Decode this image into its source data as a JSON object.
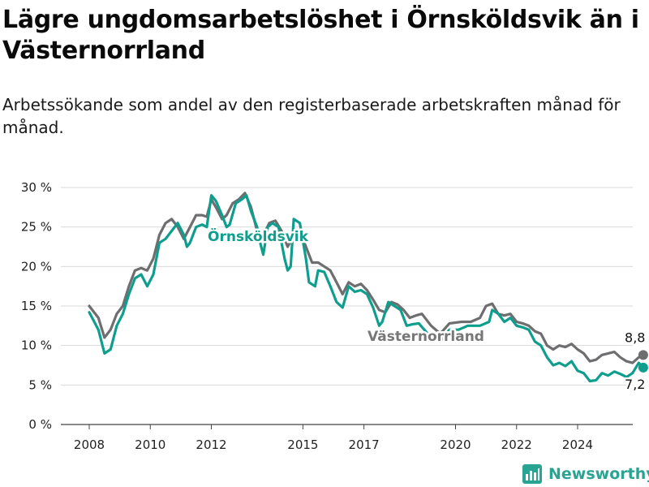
{
  "title": "Lägre ungdomsarbetslöshet i Örnsköldsvik än i Västernorrland",
  "subtitle": "Arbetssökande som andel av den registerbaserade arbetskraften månad för månad.",
  "brand": "Newsworthy",
  "colors": {
    "ornskoldsvik": "#0f9e8e",
    "vasternorrland": "#6e6e70",
    "grid": "#d9d9d9"
  },
  "chart_data": {
    "type": "line",
    "title": "Lägre ungdomsarbetslöshet i Örnsköldsvik än i Västernorrland",
    "x_ticks": [
      "2008",
      "2010",
      "2012",
      "2015",
      "2017",
      "2020",
      "2022",
      "2024"
    ],
    "y_ticks": [
      "0 %",
      "5 %",
      "10 %",
      "15 %",
      "20 %",
      "25 %",
      "30 %"
    ],
    "ylim": [
      0,
      30
    ],
    "grid": true,
    "series": [
      {
        "name": "Örnsköldsvik",
        "end_label": "7,2 %",
        "points": [
          [
            2008.0,
            14.2
          ],
          [
            2008.3,
            12.0
          ],
          [
            2008.5,
            9.0
          ],
          [
            2008.7,
            9.5
          ],
          [
            2008.9,
            12.5
          ],
          [
            2009.1,
            14.0
          ],
          [
            2009.3,
            16.5
          ],
          [
            2009.5,
            18.5
          ],
          [
            2009.7,
            19.0
          ],
          [
            2009.9,
            17.5
          ],
          [
            2010.1,
            19.0
          ],
          [
            2010.3,
            23.0
          ],
          [
            2010.5,
            23.5
          ],
          [
            2010.7,
            24.5
          ],
          [
            2010.9,
            25.5
          ],
          [
            2011.1,
            24.0
          ],
          [
            2011.2,
            22.5
          ],
          [
            2011.3,
            23.0
          ],
          [
            2011.5,
            25.0
          ],
          [
            2011.7,
            25.3
          ],
          [
            2011.85,
            25.0
          ],
          [
            2012.0,
            29.0
          ],
          [
            2012.15,
            28.3
          ],
          [
            2012.35,
            26.5
          ],
          [
            2012.5,
            25.0
          ],
          [
            2012.6,
            25.3
          ],
          [
            2012.8,
            28.0
          ],
          [
            2013.0,
            28.5
          ],
          [
            2013.15,
            29.0
          ],
          [
            2013.3,
            27.0
          ],
          [
            2013.5,
            25.0
          ],
          [
            2013.6,
            23.0
          ],
          [
            2013.7,
            21.5
          ],
          [
            2013.85,
            25.0
          ],
          [
            2014.0,
            25.5
          ],
          [
            2014.2,
            25.0
          ],
          [
            2014.4,
            21.0
          ],
          [
            2014.5,
            19.5
          ],
          [
            2014.6,
            20.0
          ],
          [
            2014.7,
            26.0
          ],
          [
            2014.9,
            25.5
          ],
          [
            2015.1,
            21.0
          ],
          [
            2015.2,
            18.0
          ],
          [
            2015.4,
            17.5
          ],
          [
            2015.5,
            19.5
          ],
          [
            2015.7,
            19.3
          ],
          [
            2015.9,
            17.5
          ],
          [
            2016.1,
            15.5
          ],
          [
            2016.3,
            14.8
          ],
          [
            2016.5,
            17.5
          ],
          [
            2016.7,
            16.8
          ],
          [
            2016.9,
            17.0
          ],
          [
            2017.1,
            16.5
          ],
          [
            2017.3,
            14.8
          ],
          [
            2017.5,
            12.5
          ],
          [
            2017.6,
            13.0
          ],
          [
            2017.8,
            15.5
          ],
          [
            2018.0,
            15.0
          ],
          [
            2018.2,
            14.5
          ],
          [
            2018.4,
            12.5
          ],
          [
            2018.6,
            12.7
          ],
          [
            2018.8,
            12.8
          ],
          [
            2019.2,
            11.0
          ],
          [
            2019.5,
            10.5
          ],
          [
            2019.8,
            12.0
          ],
          [
            2020.1,
            12.0
          ],
          [
            2020.4,
            12.5
          ],
          [
            2020.8,
            12.5
          ],
          [
            2021.1,
            13.0
          ],
          [
            2021.2,
            14.5
          ],
          [
            2021.4,
            14.0
          ],
          [
            2021.6,
            13.0
          ],
          [
            2021.8,
            13.5
          ],
          [
            2022.0,
            12.5
          ],
          [
            2022.2,
            12.3
          ],
          [
            2022.4,
            12.0
          ],
          [
            2022.6,
            10.5
          ],
          [
            2022.8,
            10.0
          ],
          [
            2023.0,
            8.5
          ],
          [
            2023.2,
            7.5
          ],
          [
            2023.4,
            7.8
          ],
          [
            2023.6,
            7.4
          ],
          [
            2023.8,
            8.0
          ],
          [
            2024.0,
            6.8
          ],
          [
            2024.2,
            6.5
          ],
          [
            2024.4,
            5.5
          ],
          [
            2024.6,
            5.6
          ],
          [
            2024.8,
            6.5
          ],
          [
            2025.0,
            6.2
          ],
          [
            2025.2,
            6.7
          ],
          [
            2025.4,
            6.4
          ],
          [
            2025.6,
            6.0
          ],
          [
            2025.8,
            6.5
          ],
          [
            2026.0,
            7.8
          ],
          [
            2026.15,
            7.2
          ]
        ]
      },
      {
        "name": "Västernorrland",
        "end_label": "8,8 %",
        "points": [
          [
            2008.0,
            15.0
          ],
          [
            2008.3,
            13.5
          ],
          [
            2008.5,
            11.0
          ],
          [
            2008.7,
            12.0
          ],
          [
            2008.9,
            14.0
          ],
          [
            2009.1,
            15.0
          ],
          [
            2009.3,
            17.5
          ],
          [
            2009.5,
            19.5
          ],
          [
            2009.7,
            19.8
          ],
          [
            2009.9,
            19.5
          ],
          [
            2010.1,
            21.0
          ],
          [
            2010.3,
            24.0
          ],
          [
            2010.5,
            25.5
          ],
          [
            2010.7,
            26.0
          ],
          [
            2010.9,
            25.0
          ],
          [
            2011.1,
            23.5
          ],
          [
            2011.3,
            25.0
          ],
          [
            2011.5,
            26.5
          ],
          [
            2011.7,
            26.5
          ],
          [
            2011.85,
            26.3
          ],
          [
            2012.0,
            28.5
          ],
          [
            2012.15,
            27.5
          ],
          [
            2012.35,
            26.0
          ],
          [
            2012.5,
            26.5
          ],
          [
            2012.7,
            28.0
          ],
          [
            2012.9,
            28.5
          ],
          [
            2013.1,
            29.3
          ],
          [
            2013.3,
            27.5
          ],
          [
            2013.5,
            24.5
          ],
          [
            2013.7,
            24.0
          ],
          [
            2013.9,
            25.5
          ],
          [
            2014.1,
            25.8
          ],
          [
            2014.3,
            24.5
          ],
          [
            2014.5,
            22.5
          ],
          [
            2014.7,
            24.0
          ],
          [
            2014.9,
            24.5
          ],
          [
            2015.1,
            22.5
          ],
          [
            2015.3,
            20.5
          ],
          [
            2015.5,
            20.5
          ],
          [
            2015.7,
            20.0
          ],
          [
            2015.9,
            19.5
          ],
          [
            2016.1,
            18.0
          ],
          [
            2016.3,
            16.5
          ],
          [
            2016.5,
            18.0
          ],
          [
            2016.7,
            17.5
          ],
          [
            2016.9,
            17.8
          ],
          [
            2017.1,
            17.0
          ],
          [
            2017.3,
            15.8
          ],
          [
            2017.5,
            14.5
          ],
          [
            2017.7,
            14.2
          ],
          [
            2017.9,
            15.5
          ],
          [
            2018.1,
            15.2
          ],
          [
            2018.3,
            14.5
          ],
          [
            2018.5,
            13.5
          ],
          [
            2018.7,
            13.8
          ],
          [
            2018.9,
            14.0
          ],
          [
            2019.2,
            12.5
          ],
          [
            2019.5,
            11.5
          ],
          [
            2019.8,
            12.8
          ],
          [
            2020.2,
            13.0
          ],
          [
            2020.5,
            13.0
          ],
          [
            2020.8,
            13.5
          ],
          [
            2021.0,
            15.0
          ],
          [
            2021.2,
            15.3
          ],
          [
            2021.4,
            14.0
          ],
          [
            2021.6,
            13.8
          ],
          [
            2021.8,
            14.0
          ],
          [
            2022.0,
            13.0
          ],
          [
            2022.2,
            12.8
          ],
          [
            2022.4,
            12.5
          ],
          [
            2022.6,
            11.8
          ],
          [
            2022.8,
            11.5
          ],
          [
            2023.0,
            10.0
          ],
          [
            2023.2,
            9.5
          ],
          [
            2023.4,
            10.0
          ],
          [
            2023.6,
            9.8
          ],
          [
            2023.8,
            10.2
          ],
          [
            2024.0,
            9.5
          ],
          [
            2024.2,
            9.0
          ],
          [
            2024.4,
            8.0
          ],
          [
            2024.6,
            8.2
          ],
          [
            2024.8,
            8.8
          ],
          [
            2025.0,
            9.0
          ],
          [
            2025.2,
            9.2
          ],
          [
            2025.4,
            8.5
          ],
          [
            2025.6,
            8.0
          ],
          [
            2025.8,
            7.8
          ],
          [
            2026.0,
            8.5
          ],
          [
            2026.15,
            8.8
          ]
        ]
      }
    ]
  }
}
